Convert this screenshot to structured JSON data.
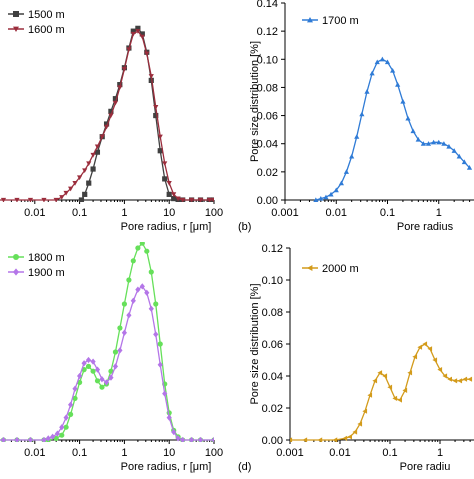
{
  "colors": {
    "m1500": "#404040",
    "m1600": "#9b2d3c",
    "m1700": "#2f7bd6",
    "m1800": "#66e05a",
    "m1900": "#b476e8",
    "m2000": "#d39b1b"
  },
  "chart_data": [
    {
      "id": "a",
      "type": "line",
      "panel_label": "",
      "xlabel": "Pore radius, r [μm]",
      "ylabel": "",
      "xscale": "log",
      "xlim": [
        0.001,
        100
      ],
      "ylim": [
        0,
        0.14
      ],
      "xticks": [
        "0.01",
        "0.1",
        "1",
        "10",
        "100"
      ],
      "yticks": [],
      "legend_position": "top-left",
      "series": [
        {
          "name": "1500 m",
          "color": "#404040",
          "marker": "square",
          "x": [
            0.11,
            0.13,
            0.16,
            0.2,
            0.25,
            0.32,
            0.4,
            0.5,
            0.63,
            0.79,
            1.0,
            1.26,
            1.58,
            2.0,
            2.51,
            3.16,
            3.98,
            5.01,
            6.31,
            7.94,
            10,
            12.6,
            15.8,
            20,
            31.6,
            50,
            79.4,
            100
          ],
          "y": [
            0,
            0.004,
            0.012,
            0.022,
            0.034,
            0.045,
            0.054,
            0.063,
            0.072,
            0.082,
            0.094,
            0.108,
            0.12,
            0.122,
            0.118,
            0.105,
            0.085,
            0.06,
            0.035,
            0.015,
            0.004,
            0.001,
            0,
            0,
            0,
            0,
            0,
            0
          ]
        },
        {
          "name": "1600 m",
          "color": "#9b2d3c",
          "marker": "triangle-down",
          "x": [
            0.001,
            0.002,
            0.004,
            0.008,
            0.016,
            0.03,
            0.04,
            0.05,
            0.063,
            0.079,
            0.1,
            0.13,
            0.16,
            0.2,
            0.25,
            0.32,
            0.4,
            0.5,
            0.63,
            0.79,
            1.0,
            1.26,
            1.58,
            2.0,
            2.51,
            3.16,
            3.98,
            5.01,
            6.31,
            7.94,
            10,
            12.6,
            15.8,
            20,
            31.6,
            50,
            79.4,
            100
          ],
          "y": [
            0,
            0,
            0,
            0,
            0,
            0,
            0.002,
            0.005,
            0.008,
            0.012,
            0.016,
            0.021,
            0.026,
            0.032,
            0.038,
            0.045,
            0.052,
            0.06,
            0.069,
            0.08,
            0.093,
            0.107,
            0.118,
            0.12,
            0.116,
            0.104,
            0.088,
            0.066,
            0.045,
            0.026,
            0.012,
            0.004,
            0.001,
            0,
            0,
            0,
            0,
            0
          ]
        }
      ]
    },
    {
      "id": "b",
      "type": "line",
      "panel_label": "(b)",
      "xlabel": "Pore radius",
      "ylabel": "Pore size distribution [%]",
      "xscale": "log",
      "xlim": [
        0.001,
        10
      ],
      "ylim": [
        0,
        0.14
      ],
      "xticks": [
        "0.001",
        "0.01",
        "0.1",
        "1"
      ],
      "yticks": [
        "0.00",
        "0.02",
        "0.04",
        "0.06",
        "0.08",
        "0.10",
        "0.12",
        "0.14"
      ],
      "legend_position": "top-left",
      "series": [
        {
          "name": "1700 m",
          "color": "#2f7bd6",
          "marker": "triangle-up",
          "x": [
            0.004,
            0.005,
            0.0063,
            0.0079,
            0.01,
            0.0126,
            0.0158,
            0.02,
            0.0251,
            0.0316,
            0.0398,
            0.0501,
            0.0631,
            0.0794,
            0.1,
            0.126,
            0.158,
            0.2,
            0.251,
            0.316,
            0.398,
            0.501,
            0.631,
            0.794,
            1.0,
            1.26,
            1.58,
            2.0,
            2.51,
            3.16,
            3.98
          ],
          "y": [
            0,
            0.001,
            0.002,
            0.004,
            0.007,
            0.012,
            0.02,
            0.031,
            0.045,
            0.061,
            0.077,
            0.09,
            0.098,
            0.1,
            0.098,
            0.092,
            0.082,
            0.07,
            0.058,
            0.049,
            0.043,
            0.04,
            0.04,
            0.041,
            0.041,
            0.04,
            0.038,
            0.035,
            0.031,
            0.027,
            0.023
          ]
        }
      ]
    },
    {
      "id": "c",
      "type": "line",
      "panel_label": "",
      "xlabel": "Pore radius, r [μm]",
      "ylabel": "",
      "xscale": "log",
      "xlim": [
        0.001,
        100
      ],
      "ylim": [
        0,
        0.12
      ],
      "xticks": [
        "0.01",
        "0.1",
        "1",
        "10",
        "100"
      ],
      "yticks": [],
      "legend_position": "top-left",
      "series": [
        {
          "name": "1800 m",
          "color": "#66e05a",
          "marker": "circle",
          "x": [
            0.001,
            0.002,
            0.004,
            0.008,
            0.016,
            0.02,
            0.03,
            0.04,
            0.05,
            0.063,
            0.079,
            0.1,
            0.126,
            0.158,
            0.2,
            0.251,
            0.316,
            0.398,
            0.501,
            0.631,
            0.794,
            1.0,
            1.26,
            1.58,
            2.0,
            2.51,
            3.16,
            3.98,
            5.01,
            6.31,
            7.94,
            10,
            12.6,
            15.8,
            20,
            31.6,
            50,
            100
          ],
          "y": [
            0,
            0,
            0,
            0,
            0,
            0,
            0.001,
            0.003,
            0.008,
            0.016,
            0.026,
            0.036,
            0.044,
            0.046,
            0.043,
            0.037,
            0.033,
            0.035,
            0.043,
            0.055,
            0.07,
            0.085,
            0.1,
            0.112,
            0.12,
            0.123,
            0.118,
            0.105,
            0.085,
            0.06,
            0.035,
            0.017,
            0.006,
            0.002,
            0,
            0,
            0,
            0
          ]
        },
        {
          "name": "1900 m",
          "color": "#b476e8",
          "marker": "diamond",
          "x": [
            0.001,
            0.002,
            0.004,
            0.008,
            0.016,
            0.02,
            0.025,
            0.032,
            0.04,
            0.05,
            0.063,
            0.079,
            0.1,
            0.126,
            0.158,
            0.2,
            0.251,
            0.316,
            0.398,
            0.501,
            0.631,
            0.794,
            1.0,
            1.26,
            1.58,
            2.0,
            2.51,
            3.16,
            3.98,
            5.01,
            6.31,
            7.94,
            10,
            12.6,
            15.8,
            20,
            31.6,
            50,
            100
          ],
          "y": [
            0,
            0,
            0,
            0,
            0,
            0.001,
            0.002,
            0.004,
            0.008,
            0.014,
            0.022,
            0.032,
            0.04,
            0.048,
            0.05,
            0.049,
            0.044,
            0.038,
            0.036,
            0.039,
            0.046,
            0.056,
            0.067,
            0.078,
            0.087,
            0.094,
            0.096,
            0.092,
            0.082,
            0.066,
            0.047,
            0.029,
            0.014,
            0.005,
            0.001,
            0,
            0,
            0,
            0
          ]
        }
      ]
    },
    {
      "id": "d",
      "type": "line",
      "panel_label": "(d)",
      "xlabel": "Pore radiu",
      "ylabel": "Pore size distribution [%]",
      "xscale": "log",
      "xlim": [
        0.001,
        10
      ],
      "ylim": [
        0,
        0.12
      ],
      "xticks": [
        "0.001",
        "0.01",
        "0.1",
        "1"
      ],
      "yticks": [
        "0.00",
        "0.02",
        "0.04",
        "0.06",
        "0.08",
        "0.10",
        "0.12"
      ],
      "legend_position": "top-left",
      "series": [
        {
          "name": "2000 m",
          "color": "#d39b1b",
          "marker": "triangle-left",
          "x": [
            0.001,
            0.002,
            0.004,
            0.008,
            0.0126,
            0.0158,
            0.02,
            0.0251,
            0.0316,
            0.0398,
            0.0501,
            0.0631,
            0.0794,
            0.1,
            0.126,
            0.158,
            0.2,
            0.251,
            0.316,
            0.398,
            0.501,
            0.631,
            0.794,
            1.0,
            1.26,
            1.58,
            2.0,
            2.51,
            3.16,
            3.98
          ],
          "y": [
            0,
            0,
            0,
            0,
            0.001,
            0.002,
            0.005,
            0.01,
            0.018,
            0.028,
            0.037,
            0.042,
            0.04,
            0.033,
            0.026,
            0.025,
            0.031,
            0.042,
            0.052,
            0.058,
            0.06,
            0.057,
            0.05,
            0.044,
            0.04,
            0.038,
            0.037,
            0.037,
            0.038,
            0.038
          ]
        }
      ]
    }
  ]
}
